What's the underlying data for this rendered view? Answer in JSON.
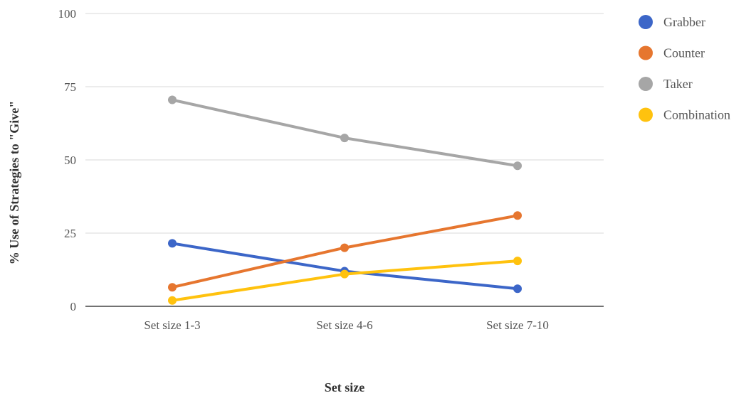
{
  "chart_data": {
    "type": "line",
    "title": "",
    "xlabel": "Set size",
    "ylabel": "%  Use of  Strategies to \"Give\"",
    "categories": [
      "Set size 1-3",
      "Set size 4-6",
      "Set size 7-10"
    ],
    "ylim": [
      0,
      100
    ],
    "yticks": [
      0,
      25,
      50,
      75,
      100
    ],
    "grid": true,
    "legend_position": "right",
    "series": [
      {
        "name": "Grabber",
        "color": "#3c66c8",
        "values": [
          21.5,
          12,
          6
        ]
      },
      {
        "name": "Counter",
        "color": "#e6762f",
        "values": [
          6.5,
          20,
          31
        ]
      },
      {
        "name": "Taker",
        "color": "#a6a6a6",
        "values": [
          70.5,
          57.5,
          48
        ]
      },
      {
        "name": "Combination",
        "color": "#ffc20e",
        "values": [
          2,
          11,
          15.5
        ]
      }
    ]
  }
}
